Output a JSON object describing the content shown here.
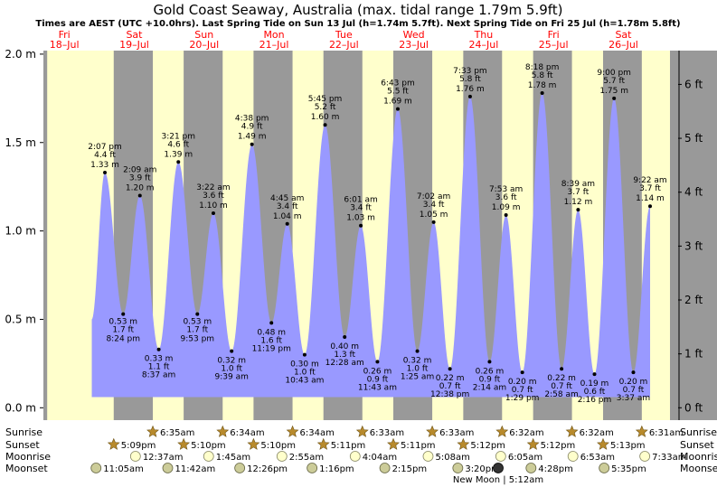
{
  "chart_data": {
    "type": "area",
    "title": "Gold Coast Seaway, Australia (max. tidal range 1.79m 5.9ft)",
    "subtitle": "Times are AEST (UTC +10.0hrs). Last Spring Tide on Sun 13 Jul (h=1.74m 5.7ft). Next Spring Tide on Fri 25 Jul (h=1.78m 5.8ft)",
    "ylim_m": [
      -0.07,
      2.02
    ],
    "xlim_hours": [
      -7.0,
      208.2
    ],
    "left_axis_ticks": [
      "0.0 m",
      "0.5 m",
      "1.0 m",
      "1.5 m",
      "2.0 m"
    ],
    "left_axis_values": [
      0.0,
      0.5,
      1.0,
      1.5,
      2.0
    ],
    "right_axis_ticks": [
      "0 ft",
      "1 ft",
      "2 ft",
      "3 ft",
      "4 ft",
      "5 ft",
      "6 ft"
    ],
    "right_axis_values_ft": [
      0,
      1,
      2,
      3,
      4,
      5,
      6
    ],
    "days": [
      {
        "dow": "Fri",
        "date": "18–Jul",
        "hour": 0
      },
      {
        "dow": "Sat",
        "date": "19–Jul",
        "hour": 24
      },
      {
        "dow": "Sun",
        "date": "20–Jul",
        "hour": 48
      },
      {
        "dow": "Mon",
        "date": "21–Jul",
        "hour": 72
      },
      {
        "dow": "Tue",
        "date": "22–Jul",
        "hour": 96
      },
      {
        "dow": "Wed",
        "date": "23–Jul",
        "hour": 120
      },
      {
        "dow": "Thu",
        "date": "24–Jul",
        "hour": 144
      },
      {
        "dow": "Fri",
        "date": "25–Jul",
        "hour": 168
      },
      {
        "dow": "Sat",
        "date": "26–Jul",
        "hour": 192
      }
    ],
    "night_bands_hours": [
      [
        -7.0,
        -5.7
      ],
      [
        17.15,
        30.58
      ],
      [
        41.17,
        54.57
      ],
      [
        65.17,
        78.57
      ],
      [
        89.18,
        102.55
      ],
      [
        113.18,
        126.55
      ],
      [
        137.2,
        150.53
      ],
      [
        161.2,
        174.53
      ],
      [
        185.22,
        198.52
      ]
    ],
    "tides": [
      {
        "time": "2:07 pm",
        "ft": "4.4 ft",
        "m": "1.33 m",
        "hour": 14.12,
        "h": 1.33,
        "type": "high"
      },
      {
        "time": "8:24 pm",
        "ft": "1.7 ft",
        "m": "0.53 m",
        "hour": 20.4,
        "h": 0.53,
        "type": "low"
      },
      {
        "time": "2:09 am",
        "ft": "3.9 ft",
        "m": "1.20 m",
        "hour": 26.15,
        "h": 1.2,
        "type": "high"
      },
      {
        "time": "8:37 am",
        "ft": "1.1 ft",
        "m": "0.33 m",
        "hour": 32.62,
        "h": 0.33,
        "type": "low"
      },
      {
        "time": "3:21 pm",
        "ft": "4.6 ft",
        "m": "1.39 m",
        "hour": 39.35,
        "h": 1.39,
        "type": "high"
      },
      {
        "time": "9:53 pm",
        "ft": "1.7 ft",
        "m": "0.53 m",
        "hour": 45.88,
        "h": 0.53,
        "type": "low"
      },
      {
        "time": "3:22 am",
        "ft": "3.6 ft",
        "m": "1.10 m",
        "hour": 51.37,
        "h": 1.1,
        "type": "high"
      },
      {
        "time": "9:39 am",
        "ft": "1.0 ft",
        "m": "0.32 m",
        "hour": 57.65,
        "h": 0.32,
        "type": "low"
      },
      {
        "time": "4:38 pm",
        "ft": "4.9 ft",
        "m": "1.49 m",
        "hour": 64.63,
        "h": 1.49,
        "type": "high"
      },
      {
        "time": "11:19 pm",
        "ft": "1.6 ft",
        "m": "0.48 m",
        "hour": 71.32,
        "h": 0.48,
        "type": "low"
      },
      {
        "time": "4:45 am",
        "ft": "3.4 ft",
        "m": "1.04 m",
        "hour": 76.75,
        "h": 1.04,
        "type": "high"
      },
      {
        "time": "10:43 am",
        "ft": "1.0 ft",
        "m": "0.30 m",
        "hour": 82.72,
        "h": 0.3,
        "type": "low"
      },
      {
        "time": "5:45 pm",
        "ft": "5.2 ft",
        "m": "1.60 m",
        "hour": 89.75,
        "h": 1.6,
        "type": "high"
      },
      {
        "time": "12:28 am",
        "ft": "1.3 ft",
        "m": "0.40 m",
        "hour": 96.47,
        "h": 0.4,
        "type": "low"
      },
      {
        "time": "6:01 am",
        "ft": "3.4 ft",
        "m": "1.03 m",
        "hour": 102.02,
        "h": 1.03,
        "type": "high"
      },
      {
        "time": "11:43 am",
        "ft": "0.9 ft",
        "m": "0.26 m",
        "hour": 107.72,
        "h": 0.26,
        "type": "low"
      },
      {
        "time": "6:43 pm",
        "ft": "5.5 ft",
        "m": "1.69 m",
        "hour": 114.72,
        "h": 1.69,
        "type": "high"
      },
      {
        "time": "1:25 am",
        "ft": "1.0 ft",
        "m": "0.32 m",
        "hour": 121.42,
        "h": 0.32,
        "type": "low"
      },
      {
        "time": "7:02 am",
        "ft": "3.4 ft",
        "m": "1.05 m",
        "hour": 127.03,
        "h": 1.05,
        "type": "high"
      },
      {
        "time": "12:38 pm",
        "ft": "0.7 ft",
        "m": "0.22 m",
        "hour": 132.63,
        "h": 0.22,
        "type": "low"
      },
      {
        "time": "7:33 pm",
        "ft": "5.8 ft",
        "m": "1.76 m",
        "hour": 139.55,
        "h": 1.76,
        "type": "high"
      },
      {
        "time": "2:14 am",
        "ft": "0.9 ft",
        "m": "0.26 m",
        "hour": 146.23,
        "h": 0.26,
        "type": "low"
      },
      {
        "time": "7:53 am",
        "ft": "3.6 ft",
        "m": "1.09 m",
        "hour": 151.88,
        "h": 1.09,
        "type": "high"
      },
      {
        "time": "1:29 pm",
        "ft": "0.7 ft",
        "m": "0.20 m",
        "hour": 157.48,
        "h": 0.2,
        "type": "low"
      },
      {
        "time": "8:18 pm",
        "ft": "5.8 ft",
        "m": "1.78 m",
        "hour": 164.3,
        "h": 1.78,
        "type": "high"
      },
      {
        "time": "2:58 am",
        "ft": "0.7 ft",
        "m": "0.22 m",
        "hour": 170.97,
        "h": 0.22,
        "type": "low"
      },
      {
        "time": "8:39 am",
        "ft": "3.7 ft",
        "m": "1.12 m",
        "hour": 176.65,
        "h": 1.12,
        "type": "high"
      },
      {
        "time": "2:16 pm",
        "ft": "0.6 ft",
        "m": "0.19 m",
        "hour": 182.27,
        "h": 0.19,
        "type": "low"
      },
      {
        "time": "9:00 pm",
        "ft": "5.7 ft",
        "m": "1.75 m",
        "hour": 189.0,
        "h": 1.75,
        "type": "high"
      },
      {
        "time": "3:37 am",
        "ft": "0.7 ft",
        "m": "0.20 m",
        "hour": 195.62,
        "h": 0.2,
        "type": "low"
      },
      {
        "time": "9:22 am",
        "ft": "3.7 ft",
        "m": "1.14 m",
        "hour": 201.37,
        "h": 1.14,
        "type": "high"
      }
    ],
    "sunrise_label": "Sunrise",
    "sunset_label": "Sunset",
    "moonrise_label": "Moonrise",
    "moonset_label": "Moonset",
    "sunrise": [
      {
        "time": "6:35am",
        "hour": 30.58
      },
      {
        "time": "6:34am",
        "hour": 54.57
      },
      {
        "time": "6:34am",
        "hour": 78.57
      },
      {
        "time": "6:33am",
        "hour": 102.55
      },
      {
        "time": "6:33am",
        "hour": 126.55
      },
      {
        "time": "6:32am",
        "hour": 150.53
      },
      {
        "time": "6:32am",
        "hour": 174.53
      },
      {
        "time": "6:31am",
        "hour": 198.52
      }
    ],
    "sunset": [
      {
        "time": "5:09pm",
        "hour": 17.15
      },
      {
        "time": "5:10pm",
        "hour": 41.17
      },
      {
        "time": "5:10pm",
        "hour": 65.17
      },
      {
        "time": "5:11pm",
        "hour": 89.18
      },
      {
        "time": "5:11pm",
        "hour": 113.18
      },
      {
        "time": "5:12pm",
        "hour": 137.2
      },
      {
        "time": "5:12pm",
        "hour": 161.2
      },
      {
        "time": "5:13pm",
        "hour": 185.22
      }
    ],
    "moonrise": [
      {
        "time": "12:37am",
        "hour": 24.62
      },
      {
        "time": "1:45am",
        "hour": 49.75
      },
      {
        "time": "2:55am",
        "hour": 74.92
      },
      {
        "time": "4:04am",
        "hour": 100.07
      },
      {
        "time": "5:08am",
        "hour": 125.13
      },
      {
        "time": "6:05am",
        "hour": 150.08
      },
      {
        "time": "6:53am",
        "hour": 174.88
      },
      {
        "time": "7:33am",
        "hour": 199.55
      }
    ],
    "moonset": [
      {
        "time": "11:05am",
        "hour": 11.08
      },
      {
        "time": "11:42am",
        "hour": 35.7
      },
      {
        "time": "12:26pm",
        "hour": 60.43
      },
      {
        "time": "1:16pm",
        "hour": 85.27
      },
      {
        "time": "2:15pm",
        "hour": 110.25
      },
      {
        "time": "3:20pm",
        "hour": 135.33
      },
      {
        "time": "4:28pm",
        "hour": 160.47
      },
      {
        "time": "5:35pm",
        "hour": 185.58
      }
    ],
    "moon_phase": {
      "label": "New Moon | 5:12am",
      "hour": 149.2
    },
    "colors": {
      "day": "#ffffcc",
      "night": "#999999",
      "water": "#9999ff",
      "day_label": "#ff0000",
      "sun_icon": "#b88a2c",
      "moonrise_icon": "#ffffcc",
      "moonset_icon": "#cccc99"
    }
  }
}
